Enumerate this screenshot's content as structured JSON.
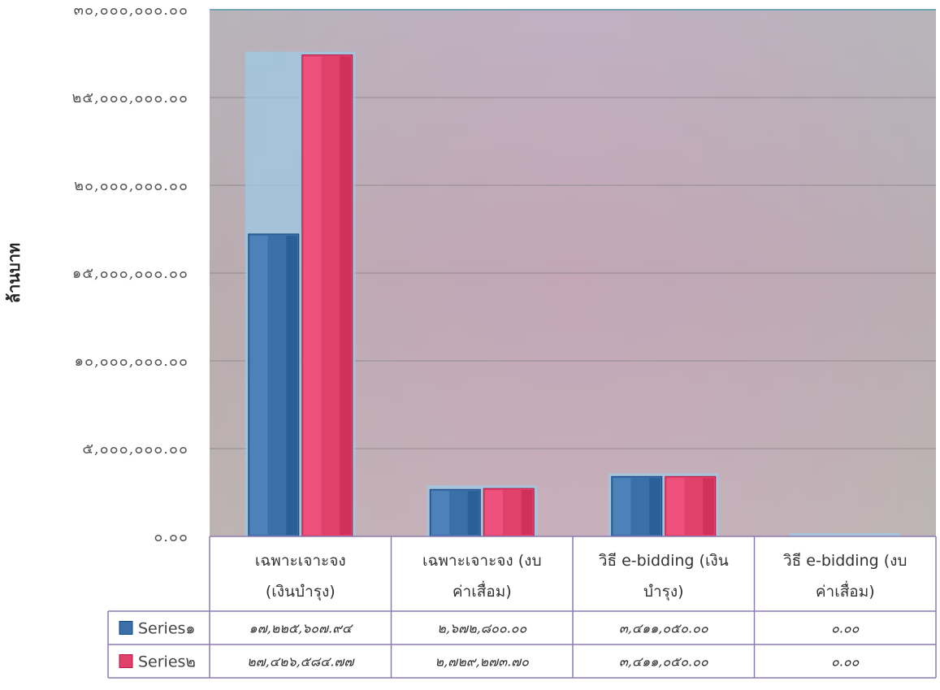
{
  "chart_data": {
    "type": "bar",
    "ylabel": "ล้านบาท",
    "ylim": [
      0,
      30000000
    ],
    "yticks": [
      0,
      5000000,
      10000000,
      15000000,
      20000000,
      25000000,
      30000000
    ],
    "ytick_labels": [
      "๐.๐๐",
      "๕,๐๐๐,๐๐๐.๐๐",
      "๑๐,๐๐๐,๐๐๐.๐๐",
      "๑๕,๐๐๐,๐๐๐.๐๐",
      "๒๐,๐๐๐,๐๐๐.๐๐",
      "๒๕,๐๐๐,๐๐๐.๐๐",
      "๓๐,๐๐๐,๐๐๐.๐๐"
    ],
    "categories": [
      [
        "เฉพาะเจาะจง",
        "(เงินบำรุง)"
      ],
      [
        "เฉพาะเจาะจง (งบ",
        "ค่าเสื่อม)"
      ],
      [
        "วิธี e-bidding (เงิน",
        "บำรุง)"
      ],
      [
        "วิธี e-bidding (งบ",
        "ค่าเสื่อม)"
      ]
    ],
    "series": [
      {
        "name": "Series๑",
        "color": "#3b6fa8",
        "values": [
          17225607.94,
          2672800.0,
          3411050.0,
          0
        ],
        "labels": [
          "๑๗,๒๒๕,๖๐๗.๙๔",
          "๒,๖๗๒,๘๐๐.๐๐",
          "๓,๔๑๑,๐๕๐.๐๐",
          "๐.๐๐"
        ]
      },
      {
        "name": "Series๒",
        "color": "#e0406a",
        "values": [
          27426584.77,
          2729273.7,
          3411050.0,
          0
        ],
        "labels": [
          "๒๗,๔๒๖,๕๘๔.๗๗",
          "๒,๗๒๙,๒๗๓.๗๐",
          "๓,๔๑๑,๐๕๐.๐๐",
          "๐.๐๐"
        ]
      }
    ],
    "grid": true,
    "legend": "data-table-left"
  }
}
